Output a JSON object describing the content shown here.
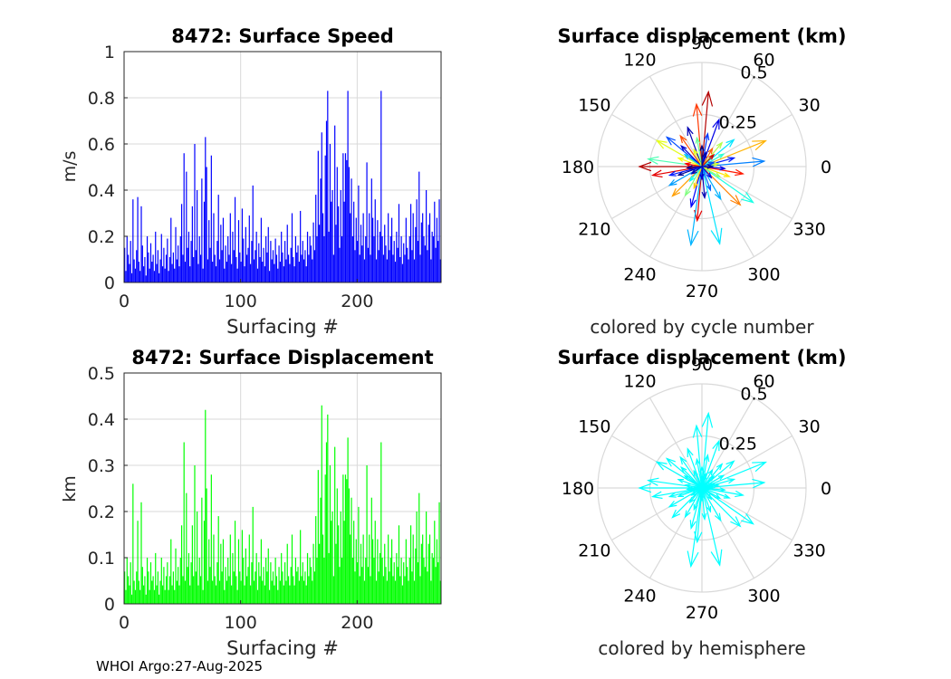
{
  "footer": {
    "text": "WHOI Argo:27-Aug-2025"
  },
  "colors": {
    "speed_bars": "#0000ff",
    "displacement_bars": "#00ff00",
    "hemisphere_arrows": "#00ffff",
    "grid": "#d9d9d9",
    "axis": "#262626"
  },
  "chart_data": [
    {
      "id": "speed",
      "type": "bar",
      "title": "8472: Surface Speed",
      "xlabel": "Surfacing #",
      "ylabel": "m/s",
      "xlim": [
        0,
        272
      ],
      "ylim": [
        0,
        1
      ],
      "xticks": [
        0,
        100,
        200
      ],
      "yticks": [
        0,
        0.2,
        0.4,
        0.6,
        0.8,
        1
      ],
      "ytick_labels": [
        "0",
        "0.2",
        "0.4",
        "0.6",
        "0.8",
        "1"
      ],
      "grid": true,
      "values": [
        0.15,
        0.05,
        0.2,
        0.12,
        0.08,
        0.18,
        0.04,
        0.36,
        0.1,
        0.06,
        0.14,
        0.37,
        0.09,
        0.05,
        0.33,
        0.16,
        0.07,
        0.11,
        0.03,
        0.2,
        0.13,
        0.06,
        0.17,
        0.09,
        0.12,
        0.05,
        0.22,
        0.08,
        0.14,
        0.04,
        0.1,
        0.21,
        0.07,
        0.15,
        0.06,
        0.12,
        0.19,
        0.05,
        0.11,
        0.28,
        0.08,
        0.13,
        0.06,
        0.24,
        0.1,
        0.16,
        0.07,
        0.2,
        0.34,
        0.12,
        0.56,
        0.09,
        0.48,
        0.15,
        0.22,
        0.07,
        0.18,
        0.33,
        0.11,
        0.6,
        0.14,
        0.4,
        0.08,
        0.2,
        0.12,
        0.45,
        0.06,
        0.35,
        0.63,
        0.5,
        0.1,
        0.27,
        0.15,
        0.55,
        0.09,
        0.3,
        0.12,
        0.07,
        0.18,
        0.38,
        0.1,
        0.25,
        0.14,
        0.28,
        0.06,
        0.16,
        0.09,
        0.2,
        0.12,
        0.3,
        0.08,
        0.22,
        0.14,
        0.37,
        0.11,
        0.06,
        0.27,
        0.13,
        0.09,
        0.32,
        0.19,
        0.07,
        0.24,
        0.12,
        0.15,
        0.29,
        0.08,
        0.18,
        0.42,
        0.1,
        0.14,
        0.22,
        0.06,
        0.17,
        0.11,
        0.28,
        0.09,
        0.15,
        0.07,
        0.2,
        0.13,
        0.24,
        0.05,
        0.18,
        0.1,
        0.14,
        0.08,
        0.19,
        0.12,
        0.06,
        0.16,
        0.09,
        0.22,
        0.13,
        0.07,
        0.18,
        0.1,
        0.25,
        0.12,
        0.08,
        0.15,
        0.3,
        0.11,
        0.07,
        0.2,
        0.13,
        0.16,
        0.09,
        0.31,
        0.12,
        0.18,
        0.1,
        0.14,
        0.07,
        0.22,
        0.12,
        0.2,
        0.16,
        0.1,
        0.26,
        0.14,
        0.38,
        0.2,
        0.57,
        0.25,
        0.45,
        0.65,
        0.3,
        0.2,
        0.55,
        0.7,
        0.83,
        0.22,
        0.6,
        0.35,
        0.4,
        0.12,
        0.68,
        0.25,
        0.5,
        0.33,
        0.15,
        0.4,
        0.2,
        0.56,
        0.35,
        0.56,
        0.53,
        0.83,
        0.5,
        0.3,
        0.45,
        0.2,
        0.35,
        0.14,
        0.28,
        0.18,
        0.42,
        0.12,
        0.25,
        0.16,
        0.3,
        0.1,
        0.2,
        0.52,
        0.15,
        0.3,
        0.12,
        0.45,
        0.28,
        0.2,
        0.36,
        0.1,
        0.27,
        0.14,
        0.22,
        0.83,
        0.2,
        0.12,
        0.25,
        0.16,
        0.1,
        0.3,
        0.14,
        0.2,
        0.28,
        0.12,
        0.18,
        0.09,
        0.22,
        0.15,
        0.34,
        0.11,
        0.2,
        0.08,
        0.17,
        0.12,
        0.28,
        0.15,
        0.1,
        0.2,
        0.34,
        0.14,
        0.3,
        0.1,
        0.24,
        0.36,
        0.18,
        0.48,
        0.12,
        0.26,
        0.3,
        0.2,
        0.16,
        0.4,
        0.14,
        0.25,
        0.3,
        0.1,
        0.22,
        0.2,
        0.35,
        0.15,
        0.28,
        0.18,
        0.36,
        0.1
      ]
    },
    {
      "id": "displacement",
      "type": "bar",
      "title": "8472: Surface Displacement",
      "xlabel": "Surfacing #",
      "ylabel": "km",
      "xlim": [
        0,
        272
      ],
      "ylim": [
        0,
        0.5
      ],
      "xticks": [
        0,
        100,
        200
      ],
      "yticks": [
        0,
        0.1,
        0.2,
        0.3,
        0.4,
        0.5
      ],
      "ytick_labels": [
        "0",
        "0.1",
        "0.2",
        "0.3",
        "0.4",
        "0.5"
      ],
      "grid": true,
      "values": [
        0.07,
        0.03,
        0.1,
        0.06,
        0.04,
        0.09,
        0.02,
        0.26,
        0.05,
        0.03,
        0.07,
        0.18,
        0.05,
        0.03,
        0.22,
        0.08,
        0.04,
        0.06,
        0.02,
        0.1,
        0.07,
        0.03,
        0.09,
        0.05,
        0.06,
        0.03,
        0.11,
        0.04,
        0.07,
        0.02,
        0.05,
        0.1,
        0.04,
        0.08,
        0.03,
        0.06,
        0.09,
        0.03,
        0.06,
        0.14,
        0.04,
        0.07,
        0.03,
        0.12,
        0.05,
        0.08,
        0.04,
        0.1,
        0.17,
        0.06,
        0.35,
        0.05,
        0.24,
        0.08,
        0.11,
        0.04,
        0.09,
        0.17,
        0.06,
        0.3,
        0.07,
        0.2,
        0.04,
        0.1,
        0.06,
        0.23,
        0.03,
        0.18,
        0.42,
        0.25,
        0.05,
        0.14,
        0.08,
        0.28,
        0.05,
        0.15,
        0.06,
        0.04,
        0.09,
        0.19,
        0.05,
        0.13,
        0.07,
        0.14,
        0.03,
        0.08,
        0.05,
        0.1,
        0.06,
        0.15,
        0.04,
        0.11,
        0.07,
        0.18,
        0.06,
        0.03,
        0.14,
        0.07,
        0.05,
        0.16,
        0.1,
        0.04,
        0.12,
        0.06,
        0.08,
        0.15,
        0.04,
        0.09,
        0.21,
        0.05,
        0.07,
        0.11,
        0.03,
        0.09,
        0.06,
        0.14,
        0.05,
        0.08,
        0.04,
        0.1,
        0.07,
        0.12,
        0.03,
        0.09,
        0.05,
        0.07,
        0.04,
        0.1,
        0.06,
        0.03,
        0.08,
        0.05,
        0.11,
        0.07,
        0.04,
        0.09,
        0.05,
        0.13,
        0.06,
        0.04,
        0.08,
        0.15,
        0.06,
        0.04,
        0.1,
        0.07,
        0.08,
        0.05,
        0.16,
        0.06,
        0.09,
        0.05,
        0.07,
        0.04,
        0.11,
        0.06,
        0.1,
        0.08,
        0.05,
        0.13,
        0.07,
        0.19,
        0.1,
        0.29,
        0.13,
        0.23,
        0.43,
        0.15,
        0.1,
        0.28,
        0.35,
        0.41,
        0.11,
        0.3,
        0.18,
        0.2,
        0.06,
        0.34,
        0.13,
        0.25,
        0.17,
        0.08,
        0.2,
        0.1,
        0.28,
        0.18,
        0.28,
        0.27,
        0.36,
        0.25,
        0.15,
        0.23,
        0.1,
        0.18,
        0.07,
        0.14,
        0.09,
        0.21,
        0.06,
        0.13,
        0.08,
        0.15,
        0.05,
        0.1,
        0.3,
        0.08,
        0.15,
        0.06,
        0.23,
        0.14,
        0.1,
        0.18,
        0.05,
        0.14,
        0.07,
        0.11,
        0.35,
        0.1,
        0.06,
        0.13,
        0.08,
        0.05,
        0.15,
        0.07,
        0.1,
        0.14,
        0.06,
        0.09,
        0.05,
        0.11,
        0.08,
        0.17,
        0.06,
        0.1,
        0.04,
        0.09,
        0.06,
        0.14,
        0.08,
        0.05,
        0.1,
        0.17,
        0.07,
        0.15,
        0.05,
        0.12,
        0.2,
        0.09,
        0.24,
        0.06,
        0.13,
        0.15,
        0.1,
        0.08,
        0.2,
        0.07,
        0.13,
        0.15,
        0.05,
        0.11,
        0.1,
        0.18,
        0.08,
        0.14,
        0.09,
        0.22,
        0.05
      ]
    },
    {
      "id": "compass-cycle",
      "type": "polar-compass",
      "title": "Surface displacement (km)",
      "caption": "colored by cycle number",
      "rmax": 0.5,
      "rticks": [
        0.25,
        0.5
      ],
      "rtick_labels": [
        "0.25",
        "0.5"
      ],
      "angle_ticks": [
        0,
        30,
        60,
        90,
        120,
        150,
        180,
        210,
        240,
        270,
        300,
        330
      ],
      "angle_labels": [
        "0",
        "30",
        "60",
        "90",
        "120",
        "150",
        "180",
        "210",
        "240",
        "270",
        "300",
        "330"
      ],
      "coloring": "jet colormap by cycle number",
      "vectors": [
        {
          "angle": 85,
          "r": 0.36,
          "c": 0.95
        },
        {
          "angle": 95,
          "r": 0.3,
          "c": 0.82
        },
        {
          "angle": 22,
          "r": 0.33,
          "c": 0.7
        },
        {
          "angle": 5,
          "r": 0.3,
          "c": 0.25
        },
        {
          "angle": 180,
          "r": 0.3,
          "c": 0.95
        },
        {
          "angle": 172,
          "r": 0.26,
          "c": 0.45
        },
        {
          "angle": 190,
          "r": 0.24,
          "c": 0.9
        },
        {
          "angle": 150,
          "r": 0.25,
          "c": 0.6
        },
        {
          "angle": 140,
          "r": 0.22,
          "c": 0.2
        },
        {
          "angle": 125,
          "r": 0.18,
          "c": 0.8
        },
        {
          "angle": 110,
          "r": 0.2,
          "c": 0.05
        },
        {
          "angle": 70,
          "r": 0.24,
          "c": 0.1
        },
        {
          "angle": 50,
          "r": 0.15,
          "c": 0.55
        },
        {
          "angle": 40,
          "r": 0.2,
          "c": 0.35
        },
        {
          "angle": 15,
          "r": 0.16,
          "c": 0.15
        },
        {
          "angle": 350,
          "r": 0.2,
          "c": 0.85
        },
        {
          "angle": 340,
          "r": 0.14,
          "c": 0.65
        },
        {
          "angle": 325,
          "r": 0.3,
          "c": 0.4
        },
        {
          "angle": 315,
          "r": 0.26,
          "c": 0.75
        },
        {
          "angle": 300,
          "r": 0.18,
          "c": 0.3
        },
        {
          "angle": 283,
          "r": 0.38,
          "c": 0.35
        },
        {
          "angle": 265,
          "r": 0.26,
          "c": 0.9
        },
        {
          "angle": 262,
          "r": 0.38,
          "c": 0.3
        },
        {
          "angle": 255,
          "r": 0.2,
          "c": 0.12
        },
        {
          "angle": 240,
          "r": 0.16,
          "c": 0.5
        },
        {
          "angle": 225,
          "r": 0.2,
          "c": 0.72
        },
        {
          "angle": 210,
          "r": 0.18,
          "c": 0.28
        },
        {
          "angle": 200,
          "r": 0.12,
          "c": 0.02
        },
        {
          "angle": 160,
          "r": 0.12,
          "c": 0.62
        },
        {
          "angle": 135,
          "r": 0.14,
          "c": 0.08
        },
        {
          "angle": 100,
          "r": 0.14,
          "c": 0.48
        },
        {
          "angle": 80,
          "r": 0.16,
          "c": 0.18
        },
        {
          "angle": 60,
          "r": 0.1,
          "c": 0.78
        },
        {
          "angle": 30,
          "r": 0.12,
          "c": 0.42
        },
        {
          "angle": 10,
          "r": 0.08,
          "c": 0.58
        },
        {
          "angle": 355,
          "r": 0.11,
          "c": 0.1
        },
        {
          "angle": 330,
          "r": 0.1,
          "c": 0.52
        },
        {
          "angle": 290,
          "r": 0.12,
          "c": 0.22
        },
        {
          "angle": 275,
          "r": 0.15,
          "c": 0.05
        },
        {
          "angle": 250,
          "r": 0.11,
          "c": 0.68
        },
        {
          "angle": 230,
          "r": 0.09,
          "c": 0.38
        },
        {
          "angle": 195,
          "r": 0.16,
          "c": 0.15
        },
        {
          "angle": 170,
          "r": 0.08,
          "c": 0.88
        },
        {
          "angle": 145,
          "r": 0.1,
          "c": 0.32
        },
        {
          "angle": 115,
          "r": 0.09,
          "c": 0.6
        },
        {
          "angle": 75,
          "r": 0.07,
          "c": 0.04
        },
        {
          "angle": 45,
          "r": 0.08,
          "c": 0.92
        },
        {
          "angle": 20,
          "r": 0.06,
          "c": 0.2
        },
        {
          "angle": 310,
          "r": 0.07,
          "c": 0.1
        },
        {
          "angle": 215,
          "r": 0.06,
          "c": 0.05
        },
        {
          "angle": 185,
          "r": 0.07,
          "c": 0.02
        },
        {
          "angle": 90,
          "r": 0.1,
          "c": 0.0
        },
        {
          "angle": 0,
          "r": 0.05,
          "c": 0.03
        },
        {
          "angle": 270,
          "r": 0.06,
          "c": 0.08
        }
      ]
    },
    {
      "id": "compass-hemisphere",
      "type": "polar-compass",
      "title": "Surface displacement (km)",
      "caption": "colored by hemisphere",
      "rmax": 0.5,
      "rticks": [
        0.25,
        0.5
      ],
      "rtick_labels": [
        "0.25",
        "0.5"
      ],
      "angle_ticks": [
        0,
        30,
        60,
        90,
        120,
        150,
        180,
        210,
        240,
        270,
        300,
        330
      ],
      "angle_labels": [
        "0",
        "30",
        "60",
        "90",
        "120",
        "150",
        "180",
        "210",
        "240",
        "270",
        "300",
        "330"
      ],
      "coloring": "single color (one hemisphere)",
      "vectors": [
        {
          "angle": 85,
          "r": 0.36
        },
        {
          "angle": 95,
          "r": 0.3
        },
        {
          "angle": 22,
          "r": 0.33
        },
        {
          "angle": 5,
          "r": 0.3
        },
        {
          "angle": 180,
          "r": 0.3
        },
        {
          "angle": 172,
          "r": 0.26
        },
        {
          "angle": 190,
          "r": 0.24
        },
        {
          "angle": 150,
          "r": 0.25
        },
        {
          "angle": 140,
          "r": 0.22
        },
        {
          "angle": 125,
          "r": 0.18
        },
        {
          "angle": 110,
          "r": 0.2
        },
        {
          "angle": 70,
          "r": 0.24
        },
        {
          "angle": 50,
          "r": 0.15
        },
        {
          "angle": 40,
          "r": 0.2
        },
        {
          "angle": 15,
          "r": 0.16
        },
        {
          "angle": 350,
          "r": 0.2
        },
        {
          "angle": 340,
          "r": 0.14
        },
        {
          "angle": 325,
          "r": 0.3
        },
        {
          "angle": 315,
          "r": 0.26
        },
        {
          "angle": 300,
          "r": 0.18
        },
        {
          "angle": 283,
          "r": 0.38
        },
        {
          "angle": 265,
          "r": 0.26
        },
        {
          "angle": 262,
          "r": 0.38
        },
        {
          "angle": 255,
          "r": 0.2
        },
        {
          "angle": 240,
          "r": 0.16
        },
        {
          "angle": 225,
          "r": 0.2
        },
        {
          "angle": 210,
          "r": 0.18
        },
        {
          "angle": 200,
          "r": 0.12
        },
        {
          "angle": 160,
          "r": 0.12
        },
        {
          "angle": 135,
          "r": 0.14
        },
        {
          "angle": 100,
          "r": 0.14
        },
        {
          "angle": 80,
          "r": 0.16
        },
        {
          "angle": 60,
          "r": 0.1
        },
        {
          "angle": 30,
          "r": 0.12
        },
        {
          "angle": 10,
          "r": 0.08
        },
        {
          "angle": 355,
          "r": 0.11
        },
        {
          "angle": 330,
          "r": 0.1
        },
        {
          "angle": 290,
          "r": 0.12
        },
        {
          "angle": 275,
          "r": 0.15
        },
        {
          "angle": 250,
          "r": 0.11
        },
        {
          "angle": 230,
          "r": 0.09
        },
        {
          "angle": 195,
          "r": 0.16
        },
        {
          "angle": 170,
          "r": 0.08
        },
        {
          "angle": 145,
          "r": 0.1
        },
        {
          "angle": 115,
          "r": 0.09
        },
        {
          "angle": 75,
          "r": 0.07
        },
        {
          "angle": 45,
          "r": 0.08
        },
        {
          "angle": 20,
          "r": 0.06
        },
        {
          "angle": 310,
          "r": 0.07
        },
        {
          "angle": 215,
          "r": 0.06
        },
        {
          "angle": 185,
          "r": 0.07
        },
        {
          "angle": 90,
          "r": 0.1
        },
        {
          "angle": 0,
          "r": 0.05
        },
        {
          "angle": 270,
          "r": 0.06
        }
      ]
    }
  ]
}
